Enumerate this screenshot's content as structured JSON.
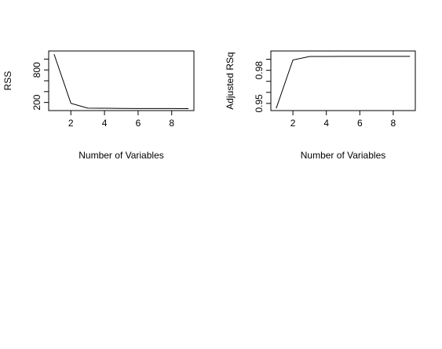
{
  "chart_data": [
    {
      "type": "line",
      "xlabel": "Number of Variables",
      "ylabel": "RSS",
      "xlim": [
        0.68,
        9.32
      ],
      "ylim": [
        50,
        1150
      ],
      "xticks": [
        2,
        4,
        6,
        8
      ],
      "yticks": [
        200,
        400,
        600,
        800,
        1000
      ],
      "ytick_labels": [
        "200",
        "",
        "",
        "800",
        ""
      ],
      "grid": false,
      "x": [
        1,
        2,
        3,
        4,
        5,
        6,
        7,
        8,
        9
      ],
      "y": [
        1090,
        185,
        95,
        93,
        90,
        88,
        88,
        87,
        86
      ]
    },
    {
      "type": "line",
      "xlabel": "Number of Variables",
      "ylabel": "Adjusted RSq",
      "xlim": [
        0.68,
        9.32
      ],
      "ylim": [
        0.9435,
        0.9975
      ],
      "xticks": [
        2,
        4,
        6,
        8
      ],
      "yticks": [
        0.95,
        0.96,
        0.97,
        0.98,
        0.99
      ],
      "ytick_labels": [
        "0.95",
        "",
        "",
        "0.98",
        ""
      ],
      "grid": false,
      "x": [
        1,
        2,
        3,
        4,
        5,
        6,
        7,
        8,
        9
      ],
      "y": [
        0.9455,
        0.9893,
        0.9925,
        0.9925,
        0.9926,
        0.9926,
        0.9926,
        0.9926,
        0.9926
      ]
    }
  ]
}
